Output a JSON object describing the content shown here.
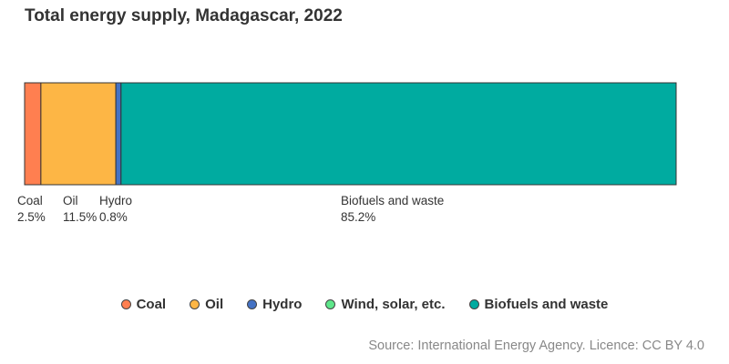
{
  "title": "Total energy supply, Madagascar, 2022",
  "source": "Source: International Energy Agency. Licence: CC BY 4.0",
  "legend": [
    {
      "label": "Coal",
      "color": "#FF7F50"
    },
    {
      "label": "Oil",
      "color": "#FDB645"
    },
    {
      "label": "Hydro",
      "color": "#4472C4"
    },
    {
      "label": "Wind, solar, etc.",
      "color": "#5EE68A"
    },
    {
      "label": "Biofuels and waste",
      "color": "#00ABA0"
    }
  ],
  "chart_data": {
    "type": "bar",
    "orientation": "horizontal-stacked",
    "title": "Total energy supply, Madagascar, 2022",
    "unit": "%",
    "xlim": [
      0,
      100
    ],
    "grid": false,
    "legend_position": "bottom",
    "series": [
      {
        "name": "Coal",
        "value": 2.5,
        "label": "2.5%",
        "color": "#FF7F50"
      },
      {
        "name": "Oil",
        "value": 11.5,
        "label": "11.5%",
        "color": "#FDB645"
      },
      {
        "name": "Hydro",
        "value": 0.8,
        "label": "0.8%",
        "color": "#4472C4"
      },
      {
        "name": "Wind, solar, etc.",
        "value": 0,
        "label": "",
        "color": "#5EE68A"
      },
      {
        "name": "Biofuels and waste",
        "value": 85.2,
        "label": "85.2%",
        "color": "#00ABA0"
      }
    ]
  }
}
